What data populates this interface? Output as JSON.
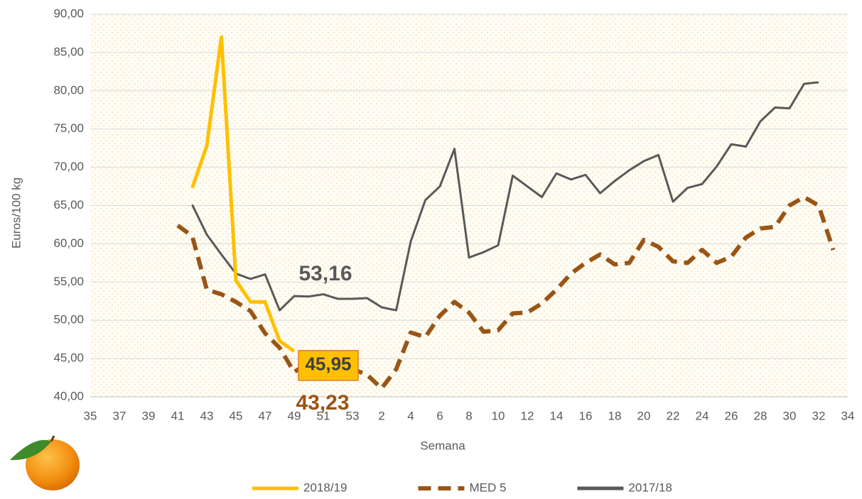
{
  "chart_data": {
    "type": "line",
    "x_label": "Semana",
    "y_label": "Euros/100 kg",
    "categories": [
      "35",
      null,
      "37",
      null,
      "39",
      null,
      "41",
      null,
      "43",
      null,
      "45",
      null,
      "47",
      null,
      "49",
      null,
      "51",
      null,
      "53",
      null,
      "2",
      null,
      "4",
      null,
      "6",
      null,
      "8",
      null,
      "10",
      null,
      "12",
      null,
      "14",
      null,
      "16",
      null,
      "18",
      null,
      "20",
      null,
      "22",
      null,
      "24",
      null,
      "26",
      null,
      "28",
      null,
      "30",
      null,
      "32",
      null,
      "34"
    ],
    "ylim": [
      40,
      90
    ],
    "yticks": [
      {
        "value": 40,
        "label": "40,00"
      },
      {
        "value": 45,
        "label": "45,00"
      },
      {
        "value": 50,
        "label": "50,00"
      },
      {
        "value": 55,
        "label": "55,00"
      },
      {
        "value": 60,
        "label": "60,00"
      },
      {
        "value": 65,
        "label": "65,00"
      },
      {
        "value": 70,
        "label": "70,00"
      },
      {
        "value": 75,
        "label": "75,00"
      },
      {
        "value": 80,
        "label": "80,00"
      },
      {
        "value": 85,
        "label": "85,00"
      },
      {
        "value": 90,
        "label": "90,00"
      }
    ],
    "grid": true,
    "legend": "bottom",
    "series": [
      {
        "name": "2018/19",
        "color": "#ffc000",
        "dashed": false,
        "values": [
          null,
          null,
          null,
          null,
          null,
          null,
          null,
          67.3,
          72.8,
          87.0,
          55.2,
          52.4,
          52.4,
          47.3,
          45.95,
          null,
          null,
          null,
          null,
          null,
          null,
          null,
          null,
          null,
          null,
          null,
          null,
          null,
          null,
          null,
          null,
          null,
          null,
          null,
          null,
          null,
          null,
          null,
          null,
          null,
          null,
          null,
          null,
          null,
          null,
          null,
          null,
          null,
          null,
          null,
          null,
          null,
          null
        ],
        "value_labels": [
          null,
          null,
          null,
          null,
          null,
          null,
          null,
          null,
          null,
          null,
          null,
          null,
          null,
          null,
          "45,95",
          null,
          null,
          null,
          null,
          null,
          null,
          null,
          null,
          null,
          null,
          null,
          null,
          null,
          null,
          null,
          null,
          null,
          null,
          null,
          null,
          null,
          null,
          null,
          null,
          null,
          null,
          null,
          null,
          null,
          null,
          null,
          null,
          null,
          null,
          null,
          null,
          null,
          null
        ]
      },
      {
        "name": "MED 5",
        "color": "#9a5516",
        "dashed": true,
        "values": [
          null,
          null,
          null,
          null,
          null,
          null,
          62.4,
          61.0,
          54.0,
          53.4,
          52.4,
          51.2,
          48.3,
          46.4,
          43.23,
          44.5,
          44.8,
          44.3,
          43.6,
          42.9,
          41.1,
          43.6,
          48.4,
          47.8,
          50.6,
          52.4,
          51.0,
          48.5,
          48.7,
          50.9,
          51.0,
          52.2,
          54.0,
          56.1,
          57.5,
          58.6,
          57.3,
          57.5,
          60.5,
          59.6,
          57.7,
          57.5,
          59.2,
          57.5,
          58.3,
          60.8,
          62.0,
          62.2,
          65.0,
          66.1,
          65.0,
          59.2,
          null
        ],
        "value_labels": [
          null,
          null,
          null,
          null,
          null,
          null,
          null,
          null,
          null,
          null,
          null,
          null,
          null,
          null,
          "43,23",
          null,
          null,
          null,
          null,
          null,
          null,
          null,
          null,
          null,
          null,
          null,
          null,
          null,
          null,
          null,
          null,
          null,
          null,
          null,
          null,
          null,
          null,
          null,
          null,
          null,
          null,
          null,
          null,
          null,
          null,
          null,
          null,
          null,
          null,
          null,
          null,
          null,
          null
        ]
      },
      {
        "name": "2017/18",
        "color": "#595959",
        "dashed": false,
        "values": [
          null,
          null,
          null,
          null,
          null,
          null,
          null,
          65.1,
          61.2,
          58.6,
          56.1,
          55.4,
          56.0,
          51.3,
          53.16,
          53.1,
          53.4,
          52.8,
          52.8,
          52.9,
          51.7,
          51.3,
          60.3,
          65.7,
          67.5,
          72.4,
          58.2,
          58.9,
          59.8,
          68.9,
          67.5,
          66.1,
          69.2,
          68.4,
          69.0,
          66.6,
          68.2,
          69.6,
          70.8,
          71.6,
          65.5,
          67.3,
          67.8,
          70.1,
          73.0,
          72.7,
          76.0,
          77.8,
          77.7,
          80.9,
          81.1,
          null,
          null
        ],
        "value_labels": [
          null,
          null,
          null,
          null,
          null,
          null,
          null,
          null,
          null,
          null,
          null,
          null,
          null,
          null,
          "53,16",
          null,
          null,
          null,
          null,
          null,
          null,
          null,
          null,
          null,
          null,
          null,
          null,
          null,
          null,
          null,
          null,
          null,
          null,
          null,
          null,
          null,
          null,
          null,
          null,
          null,
          null,
          null,
          null,
          null,
          null,
          null,
          null,
          null,
          null,
          null,
          null,
          null,
          null
        ]
      }
    ]
  }
}
